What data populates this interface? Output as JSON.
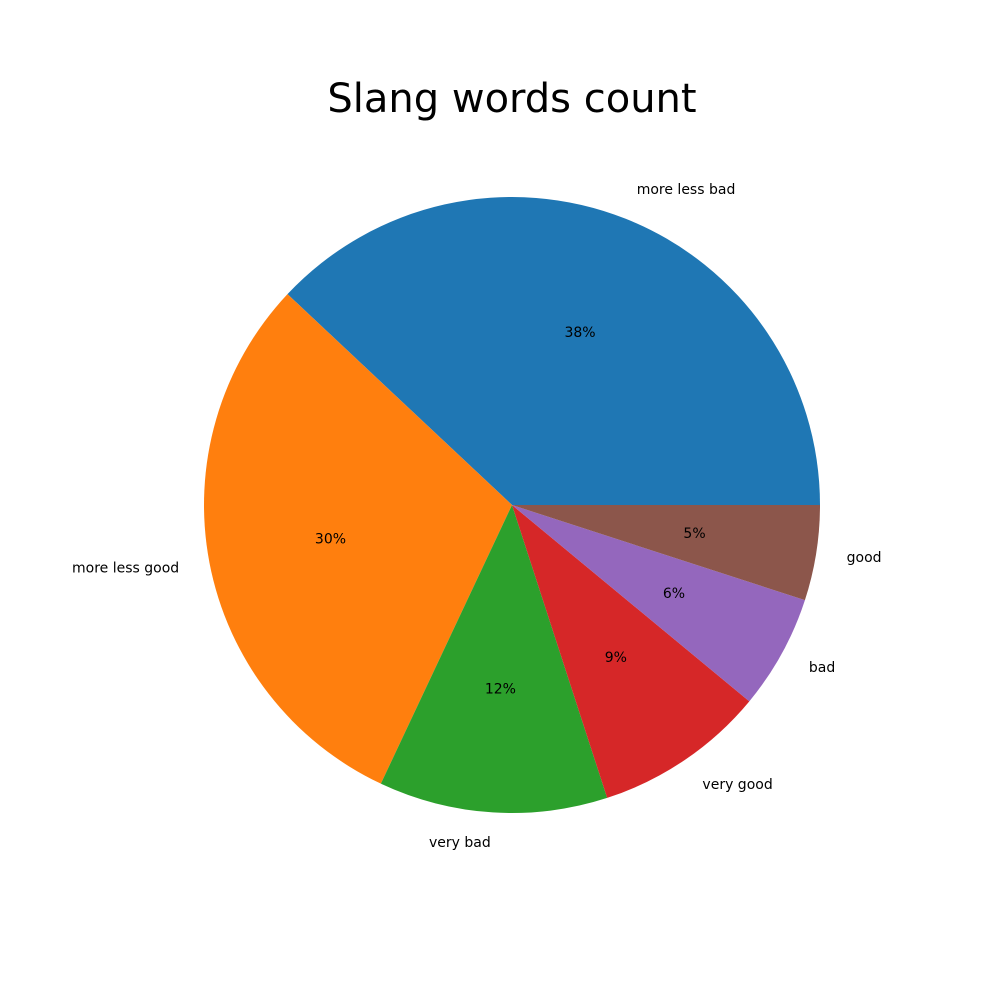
{
  "chart_data": {
    "type": "pie",
    "title": "Slang words count",
    "categories": [
      "more less bad",
      "more less good",
      "very bad",
      "very good",
      "bad",
      "good"
    ],
    "values": [
      38,
      30,
      12,
      9,
      6,
      5
    ],
    "percent_labels": [
      "38%",
      "30%",
      "12%",
      "9%",
      "6%",
      "5%"
    ],
    "colors": [
      "#1f77b4",
      "#ff7f0e",
      "#2ca02c",
      "#d62728",
      "#9467bd",
      "#8c564b"
    ],
    "start_angle_deg": 0,
    "direction": "counterclockwise"
  }
}
